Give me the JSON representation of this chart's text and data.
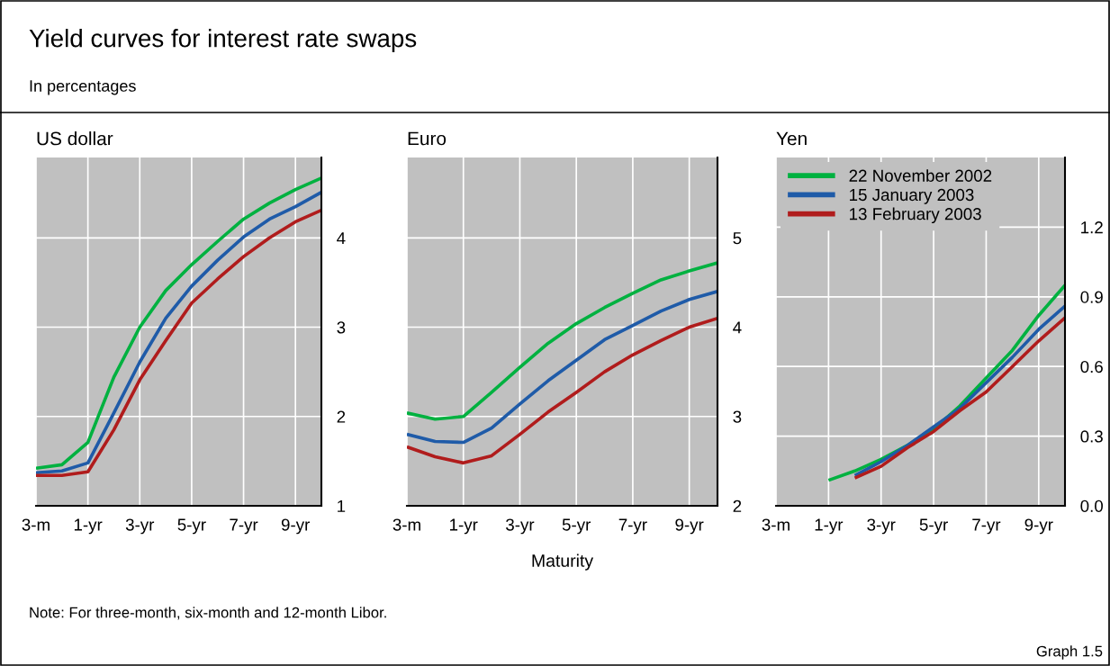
{
  "chart_data": [
    {
      "type": "line",
      "title": "US dollar",
      "annotations": [
        "Yield curves for interest rate swaps",
        "In percentages"
      ],
      "categories": [
        "3-m",
        null,
        "1-yr",
        null,
        "3-yr",
        null,
        "5-yr",
        null,
        "7-yr",
        null,
        "9-yr",
        null
      ],
      "ylim": [
        1,
        4.9
      ],
      "yticks": [
        1,
        2,
        3,
        4
      ],
      "grid": true,
      "legend": false,
      "series": [
        {
          "color": "#00b140",
          "values": [
            1.42,
            1.46,
            1.71,
            2.44,
            3.0,
            3.41,
            3.7,
            3.96,
            4.21,
            4.39,
            4.54,
            4.67
          ]
        },
        {
          "color": "#1f5ba8",
          "values": [
            1.37,
            1.39,
            1.48,
            2.04,
            2.61,
            3.1,
            3.46,
            3.75,
            4.01,
            4.21,
            4.35,
            4.51
          ]
        },
        {
          "color": "#b01c1c",
          "values": [
            1.34,
            1.34,
            1.38,
            1.85,
            2.41,
            2.85,
            3.27,
            3.54,
            3.79,
            4.0,
            4.18,
            4.31
          ]
        }
      ]
    },
    {
      "type": "line",
      "title": "Euro",
      "xlabel": "Maturity",
      "annotations": [
        "Note: For three-month, six-month and 12-month Libor."
      ],
      "categories": [
        "3-m",
        null,
        "1-yr",
        null,
        "3-yr",
        null,
        "5-yr",
        null,
        "7-yr",
        null,
        "9-yr",
        null
      ],
      "ylim": [
        2,
        5.9
      ],
      "yticks": [
        2,
        3,
        4,
        5
      ],
      "grid": true,
      "legend": false,
      "series": [
        {
          "color": "#00b140",
          "values": [
            3.04,
            2.97,
            3.0,
            3.27,
            3.55,
            3.82,
            4.04,
            4.22,
            4.38,
            4.53,
            4.63,
            4.72
          ]
        },
        {
          "color": "#1f5ba8",
          "values": [
            2.8,
            2.72,
            2.71,
            2.87,
            3.14,
            3.4,
            3.63,
            3.86,
            4.02,
            4.18,
            4.31,
            4.4
          ]
        },
        {
          "color": "#b01c1c",
          "values": [
            2.66,
            2.55,
            2.48,
            2.56,
            2.8,
            3.05,
            3.27,
            3.5,
            3.69,
            3.85,
            4.0,
            4.1
          ]
        }
      ]
    },
    {
      "type": "line",
      "title": "Yen",
      "annotations": [
        "Graph 1.5"
      ],
      "categories": [
        "3-m",
        null,
        "1-yr",
        null,
        "3-yr",
        null,
        "5-yr",
        null,
        "7-yr",
        null,
        "9-yr",
        null
      ],
      "ylim": [
        0,
        1.5
      ],
      "yticks": [
        {
          "value": 0,
          "label": "0.0"
        },
        0.3,
        0.6,
        0.9,
        1.2
      ],
      "grid": true,
      "legend": "top left",
      "series": [
        {
          "name": "22 November 2002",
          "color": "#00b140",
          "values": [
            null,
            null,
            0.11,
            0.15,
            0.2,
            0.26,
            0.33,
            0.43,
            0.55,
            0.67,
            0.82,
            0.95
          ]
        },
        {
          "name": "15 January 2003",
          "color": "#1f5ba8",
          "values": [
            null,
            null,
            null,
            0.13,
            0.19,
            0.26,
            0.34,
            0.42,
            0.53,
            0.64,
            0.76,
            0.86
          ]
        },
        {
          "name": "13 February 2003",
          "color": "#b01c1c",
          "values": [
            null,
            null,
            null,
            0.12,
            0.17,
            0.25,
            0.32,
            0.41,
            0.49,
            0.6,
            0.71,
            0.81
          ]
        }
      ]
    }
  ]
}
